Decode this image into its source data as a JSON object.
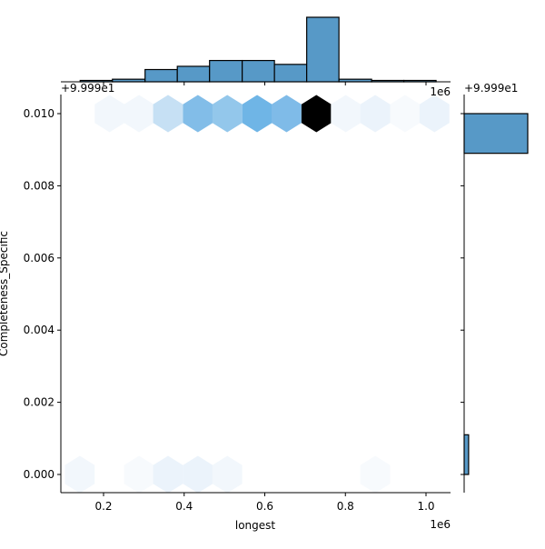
{
  "chart_data": {
    "type": "hexbin-jointplot",
    "title": "",
    "xlabel": "longest",
    "ylabel": "Completeness_Specific",
    "x_scale_label": "1e6",
    "y_offset_label": "+9.999e1",
    "xlim": [
      0.1,
      1.06
    ],
    "ylim": [
      -0.0005,
      0.0105
    ],
    "x_ticks": [
      0.2,
      0.4,
      0.6,
      0.8,
      1.0
    ],
    "x_tick_labels": [
      "0.2",
      "0.4",
      "0.6",
      "0.8",
      "1.0"
    ],
    "y_ticks": [
      0.0,
      0.002,
      0.004,
      0.006,
      0.008,
      0.01
    ],
    "y_tick_labels": [
      "0.000",
      "0.002",
      "0.004",
      "0.006",
      "0.008",
      "0.010"
    ],
    "hexbins": [
      {
        "x": 0.215,
        "y": 0.01,
        "color": "#f2f7fc"
      },
      {
        "x": 0.288,
        "y": 0.01,
        "color": "#f2f7fc"
      },
      {
        "x": 0.36,
        "y": 0.01,
        "color": "#c6e0f4"
      },
      {
        "x": 0.434,
        "y": 0.01,
        "color": "#82bde8"
      },
      {
        "x": 0.507,
        "y": 0.01,
        "color": "#93c7eb"
      },
      {
        "x": 0.581,
        "y": 0.01,
        "color": "#6fb5e6"
      },
      {
        "x": 0.654,
        "y": 0.01,
        "color": "#7fbbe8"
      },
      {
        "x": 0.728,
        "y": 0.01,
        "color": "#000000"
      },
      {
        "x": 0.801,
        "y": 0.01,
        "color": "#f2f7fc"
      },
      {
        "x": 0.874,
        "y": 0.01,
        "color": "#ebf3fb"
      },
      {
        "x": 0.948,
        "y": 0.01,
        "color": "#f7fafd"
      },
      {
        "x": 1.021,
        "y": 0.01,
        "color": "#ebf3fb"
      },
      {
        "x": 0.141,
        "y": 0.0,
        "color": "#f2f7fc"
      },
      {
        "x": 0.288,
        "y": 0.0,
        "color": "#f7fafd"
      },
      {
        "x": 0.36,
        "y": 0.0,
        "color": "#ebf3fb"
      },
      {
        "x": 0.434,
        "y": 0.0,
        "color": "#ebf3fb"
      },
      {
        "x": 0.507,
        "y": 0.0,
        "color": "#f2f7fc"
      },
      {
        "x": 0.874,
        "y": 0.0,
        "color": "#f7fafd"
      }
    ],
    "marginal_x_histogram": {
      "bin_edges": [
        0.142,
        0.222,
        0.303,
        0.383,
        0.463,
        0.544,
        0.624,
        0.704,
        0.784,
        0.865,
        0.945,
        1.025
      ],
      "relative_counts": [
        0.02,
        0.04,
        0.19,
        0.24,
        0.33,
        0.33,
        0.27,
        1.0,
        0.04,
        0.02,
        0.02
      ]
    },
    "marginal_y_histogram": {
      "bins": [
        {
          "y_range": [
            0.0089,
            0.01
          ],
          "relative_count": 1.0
        },
        {
          "y_range": [
            0.0,
            0.0011
          ],
          "relative_count": 0.07
        }
      ]
    },
    "colors": {
      "hist_fill": "#5799c7",
      "hist_edge": "#000000"
    }
  }
}
